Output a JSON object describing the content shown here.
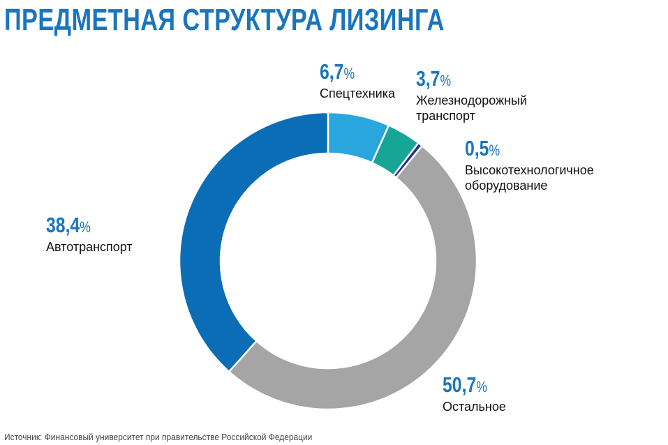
{
  "chart_data": {
    "type": "pie",
    "title": "ПРЕДМЕТНАЯ СТРУКТУРА ЛИЗИНГА",
    "unit": "%",
    "donut": true,
    "slices": [
      {
        "label": "Спецтехника",
        "value": 6.7,
        "display": "6,7",
        "color": "#2aa6df"
      },
      {
        "label": "Железнодорожный транспорт",
        "value": 3.7,
        "display": "3,7",
        "color": "#17a597"
      },
      {
        "label": "Высокотехнологичное оборудование",
        "value": 0.5,
        "display": "0,5",
        "color": "#2b2f8f"
      },
      {
        "label": "Остальное",
        "value": 50.7,
        "display": "50,7",
        "color": "#a5a5a5"
      },
      {
        "label": "Автотранспорт",
        "value": 38.4,
        "display": "38,4",
        "color": "#0b6db5"
      }
    ],
    "source": "Источник: Финансовый университет при правительстве Российской Федерации"
  }
}
